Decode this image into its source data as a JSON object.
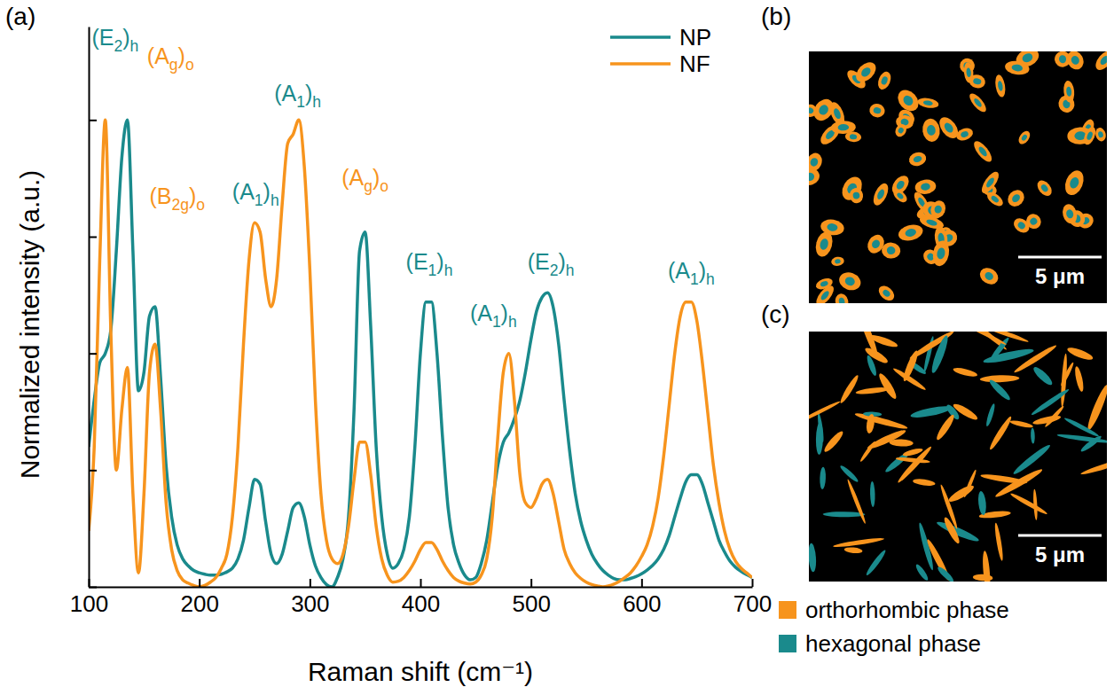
{
  "chart_data": {
    "type": "line",
    "panel_label": "(a)",
    "x_label": "Raman shift (cm⁻¹)",
    "y_label": "Normalized intensity (a.u.)",
    "x": [
      100,
      105,
      110,
      115,
      120,
      125,
      130,
      135,
      140,
      145,
      150,
      155,
      160,
      165,
      170,
      175,
      180,
      185,
      190,
      195,
      200,
      205,
      210,
      215,
      220,
      225,
      230,
      235,
      240,
      245,
      250,
      255,
      260,
      265,
      270,
      275,
      280,
      285,
      290,
      295,
      300,
      305,
      310,
      315,
      320,
      325,
      330,
      335,
      340,
      345,
      350,
      355,
      360,
      365,
      370,
      375,
      380,
      385,
      390,
      395,
      400,
      405,
      410,
      415,
      420,
      425,
      430,
      435,
      440,
      445,
      450,
      455,
      460,
      465,
      470,
      475,
      480,
      485,
      490,
      495,
      500,
      505,
      510,
      515,
      520,
      525,
      530,
      535,
      540,
      545,
      550,
      555,
      560,
      565,
      570,
      575,
      580,
      585,
      590,
      595,
      600,
      605,
      610,
      615,
      620,
      625,
      630,
      635,
      640,
      645,
      650,
      655,
      660,
      665,
      670,
      675,
      680,
      685,
      690,
      695,
      700
    ],
    "series": [
      {
        "name": "NP",
        "color": "#1a8a8c",
        "values": [
          0.3,
          0.4,
          0.48,
          0.5,
          0.55,
          0.72,
          0.92,
          1.0,
          0.72,
          0.42,
          0.46,
          0.58,
          0.6,
          0.45,
          0.26,
          0.15,
          0.09,
          0.06,
          0.045,
          0.035,
          0.03,
          0.027,
          0.025,
          0.025,
          0.027,
          0.032,
          0.04,
          0.06,
          0.1,
          0.17,
          0.23,
          0.22,
          0.14,
          0.07,
          0.05,
          0.07,
          0.12,
          0.17,
          0.18,
          0.15,
          0.09,
          0.045,
          0.02,
          0.005,
          0.0,
          0.02,
          0.06,
          0.15,
          0.38,
          0.72,
          0.76,
          0.56,
          0.3,
          0.15,
          0.07,
          0.04,
          0.05,
          0.08,
          0.15,
          0.3,
          0.5,
          0.61,
          0.61,
          0.5,
          0.32,
          0.17,
          0.09,
          0.05,
          0.025,
          0.015,
          0.02,
          0.05,
          0.1,
          0.18,
          0.26,
          0.31,
          0.33,
          0.36,
          0.4,
          0.46,
          0.53,
          0.59,
          0.62,
          0.63,
          0.6,
          0.52,
          0.4,
          0.29,
          0.2,
          0.14,
          0.1,
          0.07,
          0.05,
          0.035,
          0.025,
          0.018,
          0.015,
          0.015,
          0.018,
          0.022,
          0.028,
          0.036,
          0.046,
          0.06,
          0.08,
          0.11,
          0.15,
          0.19,
          0.225,
          0.24,
          0.24,
          0.22,
          0.18,
          0.14,
          0.1,
          0.075,
          0.055,
          0.042,
          0.033,
          0.026,
          0.02
        ]
      },
      {
        "name": "NF",
        "color": "#f7941d",
        "values": [
          0.12,
          0.3,
          0.7,
          1.0,
          0.55,
          0.25,
          0.38,
          0.47,
          0.2,
          0.03,
          0.2,
          0.46,
          0.52,
          0.38,
          0.18,
          0.08,
          0.035,
          0.015,
          0.008,
          0.003,
          0.0,
          0.003,
          0.01,
          0.02,
          0.04,
          0.07,
          0.15,
          0.3,
          0.52,
          0.7,
          0.78,
          0.76,
          0.66,
          0.6,
          0.66,
          0.82,
          0.95,
          0.97,
          1.0,
          0.9,
          0.68,
          0.4,
          0.2,
          0.1,
          0.06,
          0.05,
          0.07,
          0.13,
          0.23,
          0.31,
          0.31,
          0.24,
          0.13,
          0.06,
          0.025,
          0.01,
          0.012,
          0.02,
          0.035,
          0.055,
          0.08,
          0.095,
          0.095,
          0.08,
          0.055,
          0.035,
          0.02,
          0.012,
          0.008,
          0.006,
          0.01,
          0.025,
          0.06,
          0.15,
          0.32,
          0.46,
          0.5,
          0.4,
          0.24,
          0.18,
          0.17,
          0.19,
          0.22,
          0.23,
          0.2,
          0.14,
          0.08,
          0.05,
          0.03,
          0.018,
          0.01,
          0.005,
          0.002,
          0.0,
          0.002,
          0.006,
          0.012,
          0.02,
          0.03,
          0.045,
          0.065,
          0.09,
          0.13,
          0.19,
          0.28,
          0.39,
          0.5,
          0.58,
          0.61,
          0.61,
          0.57,
          0.48,
          0.37,
          0.26,
          0.18,
          0.12,
          0.08,
          0.055,
          0.04,
          0.03,
          0.02
        ]
      }
    ],
    "xlim": [
      100,
      700
    ],
    "xticks": [
      100,
      200,
      300,
      400,
      500,
      600,
      700
    ],
    "ylim": [
      0,
      1.2
    ],
    "yticks": [
      0,
      0.25,
      0.5,
      0.75,
      1
    ],
    "tick_labels": "x",
    "grid": false,
    "legend": "upper right",
    "annotations": [
      {
        "text": "(E2)h",
        "x": 124,
        "y": 1.16,
        "color": "#1a8a8c"
      },
      {
        "text": "(Ag)o",
        "x": 174,
        "y": 1.12,
        "color": "#f7941d"
      },
      {
        "text": "(B2g)o",
        "x": 180,
        "y": 0.82,
        "color": "#f7941d"
      },
      {
        "text": "(A1)h",
        "x": 251,
        "y": 0.83,
        "color": "#1a8a8c"
      },
      {
        "text": "(A1)h",
        "x": 289,
        "y": 1.04,
        "color": "#1a8a8c"
      },
      {
        "text": "(Ag)o",
        "x": 350,
        "y": 0.86,
        "color": "#f7941d"
      },
      {
        "text": "(E1)h",
        "x": 408,
        "y": 0.68,
        "color": "#1a8a8c"
      },
      {
        "text": "(A1)h",
        "x": 466,
        "y": 0.57,
        "color": "#1a8a8c"
      },
      {
        "text": "(E2)h",
        "x": 518,
        "y": 0.68,
        "color": "#1a8a8c"
      },
      {
        "text": "(A1)h",
        "x": 645,
        "y": 0.66,
        "color": "#1a8a8c"
      }
    ]
  },
  "panels": [
    {
      "label": "(b)",
      "scale_bar": "5 μm"
    },
    {
      "label": "(c)",
      "scale_bar": "5 μm"
    }
  ],
  "phase_legend": [
    {
      "name": "orthorhombic phase",
      "color": "#f7941d"
    },
    {
      "name": "hexagonal phase",
      "color": "#1a8a8c"
    }
  ]
}
